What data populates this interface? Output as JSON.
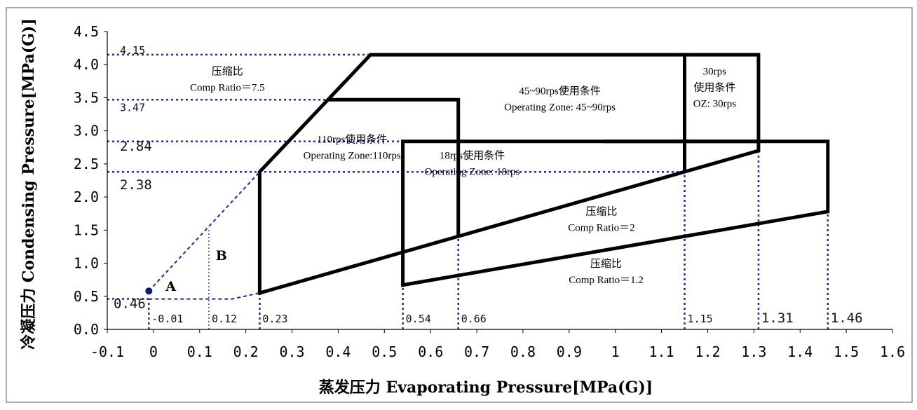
{
  "chart_data": {
    "type": "line",
    "title": "",
    "xlabel": "蒸发压力 Evaporating Pressure[MPa(G)]",
    "ylabel": "冷凝压力 Condensing Pressure[MPa(G)]",
    "xlim": [
      -0.1,
      1.6
    ],
    "ylim": [
      0,
      4.5
    ],
    "xticks": [
      -0.1,
      0,
      0.1,
      0.2,
      0.3,
      0.4,
      0.5,
      0.6,
      0.7,
      0.8,
      0.9,
      1,
      1.1,
      1.2,
      1.3,
      1.4,
      1.5,
      1.6
    ],
    "xtick_labels": [
      "-0.1",
      "0",
      "0.1",
      "0.2",
      "0.3",
      "0.4",
      "0.5",
      "0.6",
      "0.7",
      "0.8",
      "0.9",
      "1",
      "1.1",
      "1.2",
      "1.3",
      "1.4",
      "1.5",
      "1.6"
    ],
    "yticks": [
      0,
      0.5,
      1,
      1.5,
      2,
      2.5,
      3,
      3.5,
      4,
      4.5
    ],
    "ytick_labels": [
      "0.0",
      "0.5",
      "1.0",
      "1.5",
      "2.0",
      "2.5",
      "3.0",
      "3.5",
      "4.0",
      "4.5"
    ],
    "grid": false,
    "legend": "none",
    "colors": {
      "boundary": "#000000",
      "reference": "#1f2a9c",
      "point": "#0b1a7a"
    },
    "series": [
      {
        "role": "operating-envelope",
        "points": [
          [
            0.23,
            0.55
          ],
          [
            0.23,
            2.38
          ],
          [
            0.47,
            4.15
          ],
          [
            1.31,
            4.15
          ],
          [
            1.31,
            2.7
          ],
          [
            0.23,
            0.55
          ]
        ]
      },
      {
        "role": "operating-envelope",
        "points": [
          [
            0.38,
            3.47
          ],
          [
            0.66,
            3.47
          ],
          [
            0.66,
            1.43
          ]
        ]
      },
      {
        "role": "operating-envelope",
        "points": [
          [
            0.54,
            0.67
          ],
          [
            0.54,
            2.84
          ],
          [
            1.46,
            2.84
          ],
          [
            1.46,
            1.78
          ],
          [
            0.54,
            0.67
          ]
        ]
      },
      {
        "role": "operating-envelope",
        "points": [
          [
            1.15,
            4.15
          ],
          [
            1.15,
            2.42
          ]
        ]
      },
      {
        "role": "operating-envelope",
        "points": [
          [
            0.98,
            2.84
          ],
          [
            1.31,
            2.84
          ]
        ]
      },
      {
        "role": "extension",
        "points": [
          [
            -0.01,
            0.58
          ],
          [
            0.23,
            2.38
          ]
        ]
      },
      {
        "role": "extension",
        "points": [
          [
            -0.01,
            0.46
          ],
          [
            0.17,
            0.46
          ],
          [
            0.23,
            0.55
          ]
        ]
      }
    ],
    "reference_lines": {
      "horizontal": [
        {
          "y": 4.15,
          "label": "4.15"
        },
        {
          "y": 3.47,
          "label": "3.47"
        },
        {
          "y": 2.84,
          "label": "2.84"
        },
        {
          "y": 2.38,
          "label": "2.38"
        },
        {
          "y": 0.46,
          "label": "0.46"
        }
      ],
      "vertical": [
        {
          "x": -0.01,
          "label": "-0.01"
        },
        {
          "x": 0.12,
          "label": "0.12"
        },
        {
          "x": 0.23,
          "label": "0.23"
        },
        {
          "x": 0.54,
          "label": "0.54"
        },
        {
          "x": 0.66,
          "label": "0.66"
        },
        {
          "x": 1.15,
          "label": "1.15"
        },
        {
          "x": 1.31,
          "label": "1.31"
        },
        {
          "x": 1.46,
          "label": "1.46"
        }
      ]
    },
    "points": [
      {
        "name": "A",
        "x": -0.01,
        "y": 0.58
      }
    ],
    "region_labels": [
      {
        "text": "B",
        "x": 0.15,
        "y": 1.05
      }
    ],
    "annotations": [
      {
        "lines": [
          "压缩比",
          "Comp Ratio＝7.5"
        ],
        "x": 0.16,
        "y": 3.85
      },
      {
        "lines": [
          "45~90rps使用条件",
          "Operating Zone: 45~90rps"
        ],
        "x": 0.88,
        "y": 3.55
      },
      {
        "lines": [
          "30rps",
          "使用条件",
          "OZ: 30rps"
        ],
        "x": 1.215,
        "y": 3.85
      },
      {
        "lines": [
          "110rps使用条件",
          "Operating Zone:110rps"
        ],
        "x": 0.43,
        "y": 2.82
      },
      {
        "lines": [
          "18rps使用条件",
          "Operating Zone: 18rps"
        ],
        "x": 0.69,
        "y": 2.58
      },
      {
        "lines": [
          "压缩比",
          "Comp Ratio＝2"
        ],
        "x": 0.97,
        "y": 1.73
      },
      {
        "lines": [
          "压缩比",
          "Comp Ratio＝1.2"
        ],
        "x": 0.98,
        "y": 0.94
      }
    ]
  }
}
